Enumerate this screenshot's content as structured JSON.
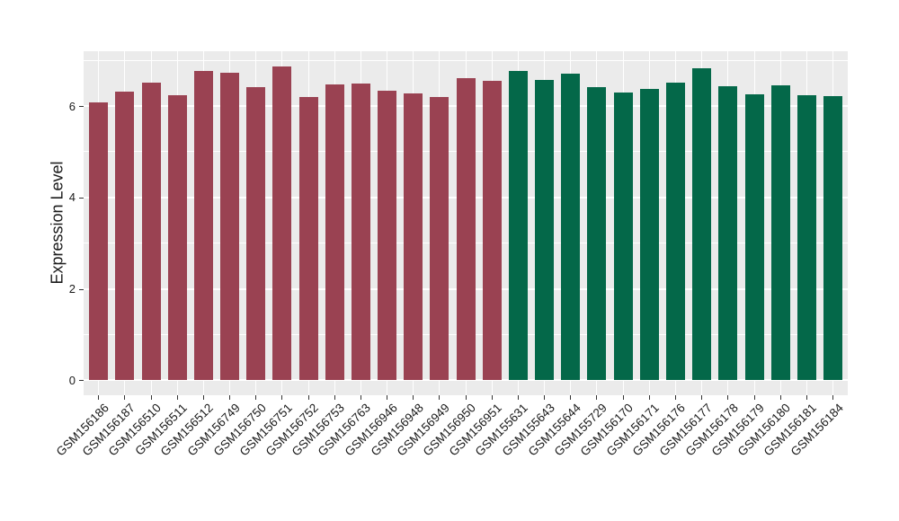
{
  "chart_data": {
    "type": "bar",
    "title": "",
    "xlabel": "",
    "ylabel": "Expression Level",
    "ylim": [
      0,
      7.2
    ],
    "grid": true,
    "legend_position": "none",
    "panel_background": "#EBEBEB",
    "grid_color": "#FFFFFF",
    "axis_text_color": "#1a1a1a",
    "tick_mark_color": "#333333",
    "bar_group_colors": [
      "#9A4252",
      "#046849"
    ],
    "y_ticks": {
      "major": [
        0,
        2,
        4,
        6
      ],
      "minor": [
        1,
        3,
        5,
        7
      ]
    },
    "categories": [
      "GSM156186",
      "GSM156187",
      "GSM156510",
      "GSM156511",
      "GSM156512",
      "GSM156749",
      "GSM156750",
      "GSM156751",
      "GSM156752",
      "GSM156753",
      "GSM156763",
      "GSM156946",
      "GSM156948",
      "GSM156949",
      "GSM156950",
      "GSM156951",
      "GSM155631",
      "GSM155643",
      "GSM155644",
      "GSM155729",
      "GSM156170",
      "GSM156171",
      "GSM156176",
      "GSM156177",
      "GSM156178",
      "GSM156179",
      "GSM156180",
      "GSM156181",
      "GSM156184"
    ],
    "group_index": [
      0,
      0,
      0,
      0,
      0,
      0,
      0,
      0,
      0,
      0,
      0,
      0,
      0,
      0,
      0,
      0,
      1,
      1,
      1,
      1,
      1,
      1,
      1,
      1,
      1,
      1,
      1,
      1,
      1
    ],
    "series": [
      {
        "name": "Expression Level",
        "values": [
          6.07,
          6.32,
          6.51,
          6.24,
          6.77,
          6.73,
          6.42,
          6.87,
          6.19,
          6.47,
          6.5,
          6.34,
          6.28,
          6.2,
          6.61,
          6.55,
          6.77,
          6.57,
          6.7,
          6.42,
          6.3,
          6.38,
          6.52,
          6.82,
          6.43,
          6.26,
          6.46,
          6.23,
          6.21
        ]
      }
    ]
  }
}
